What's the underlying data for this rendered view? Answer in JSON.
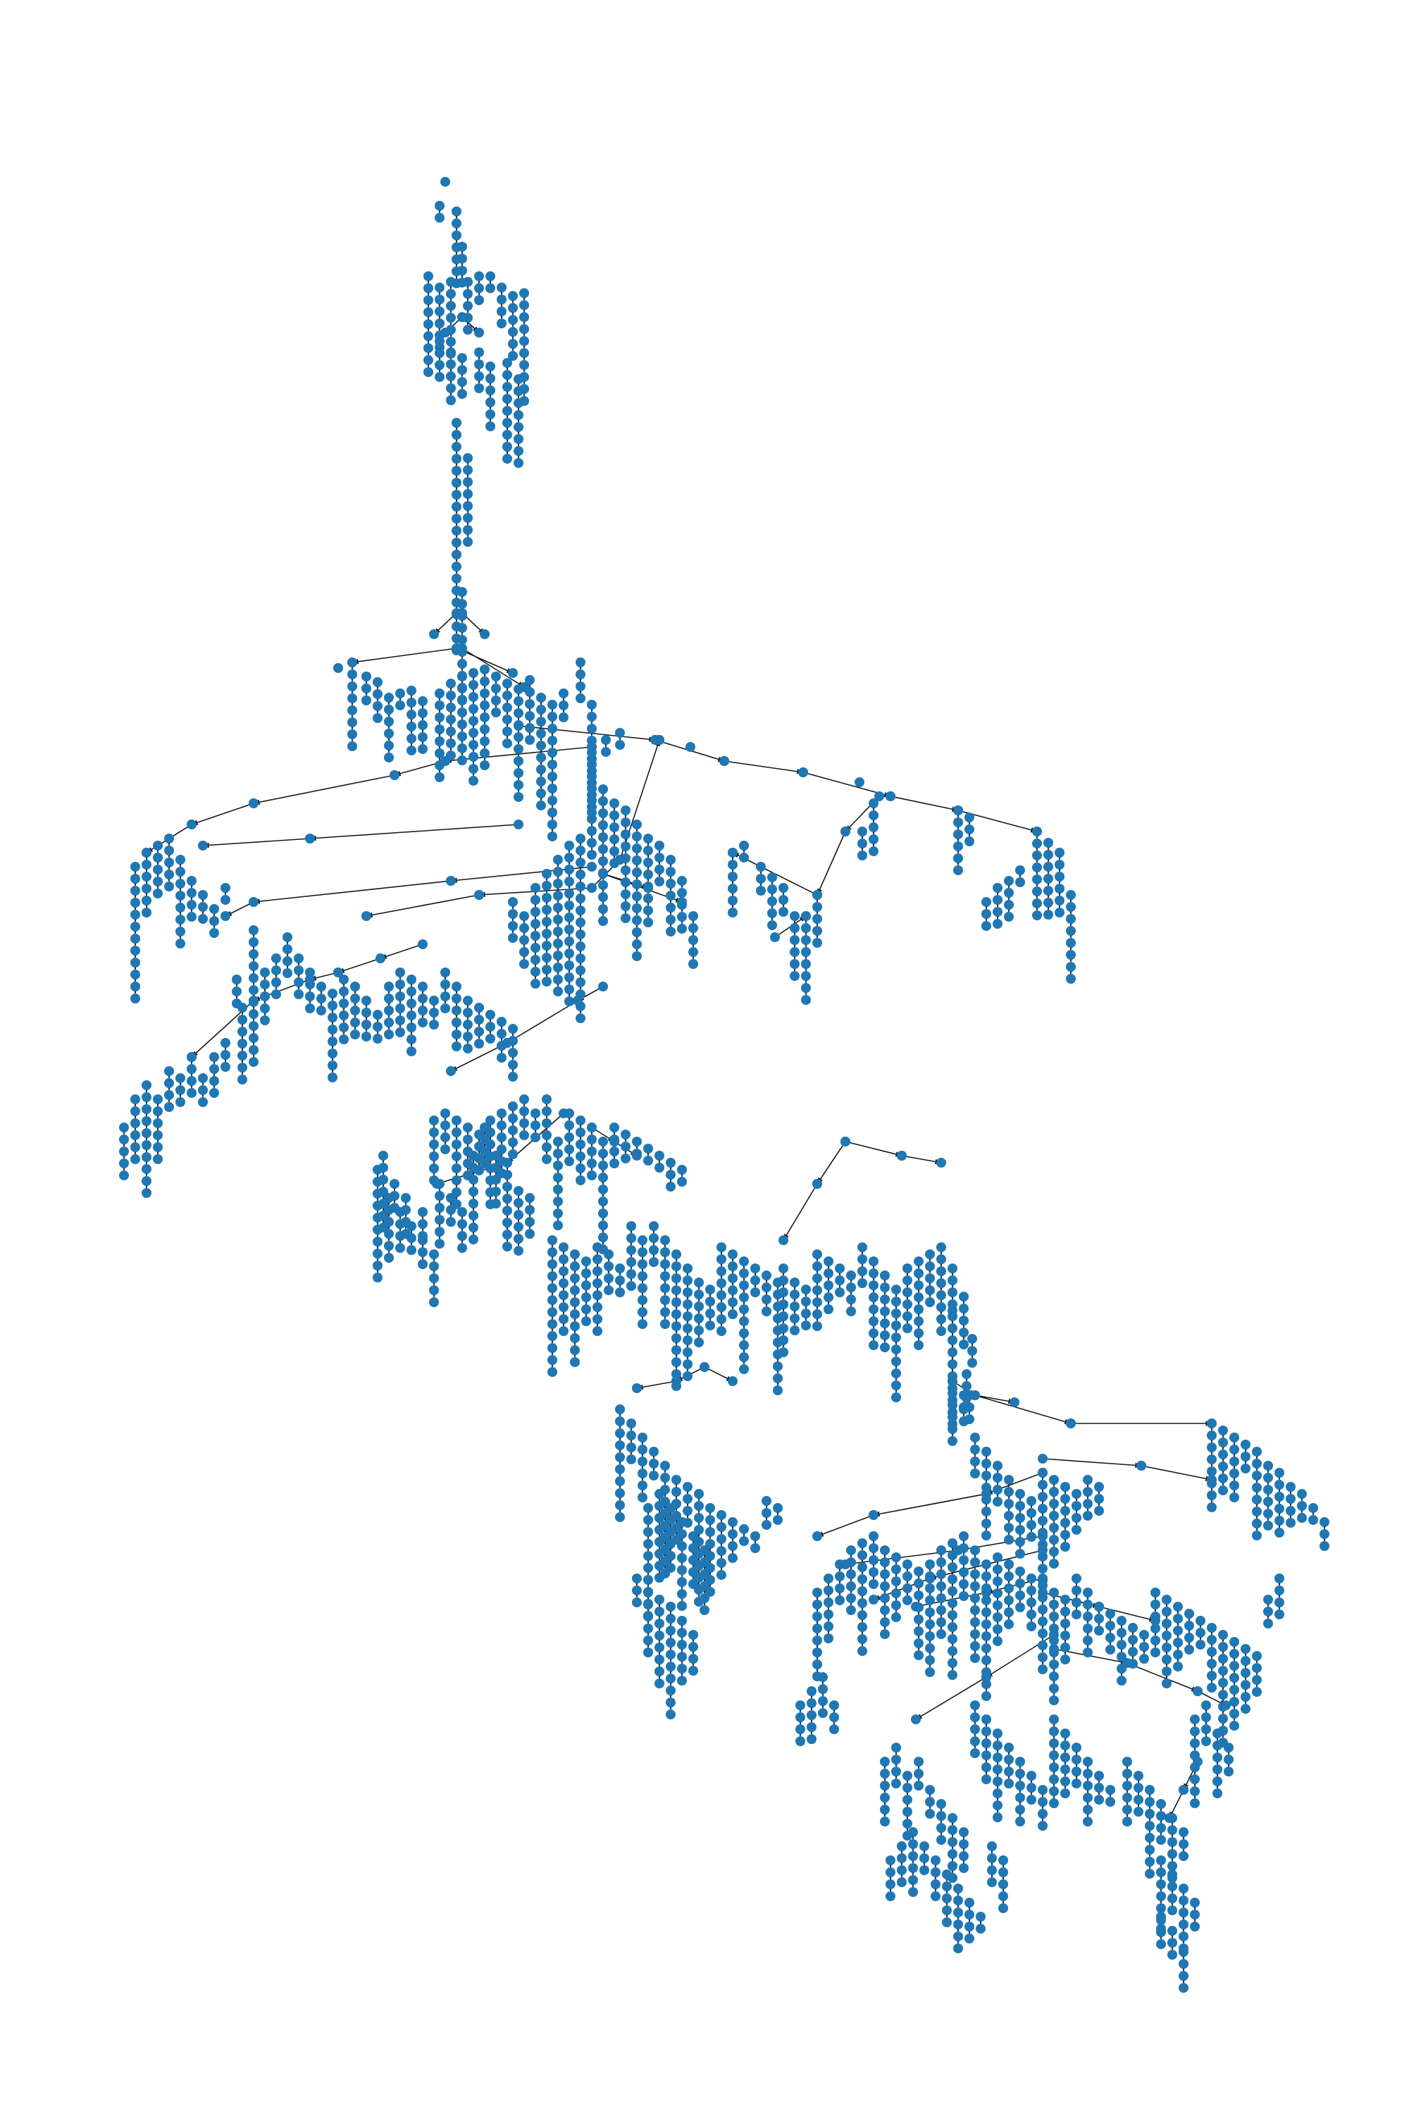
{
  "figure": {
    "type": "directed-tree",
    "title": "",
    "node_color": "#1f77b4",
    "edge_color": "#1a1a1a",
    "background": "#ffffff",
    "arrowheads": true
  }
}
